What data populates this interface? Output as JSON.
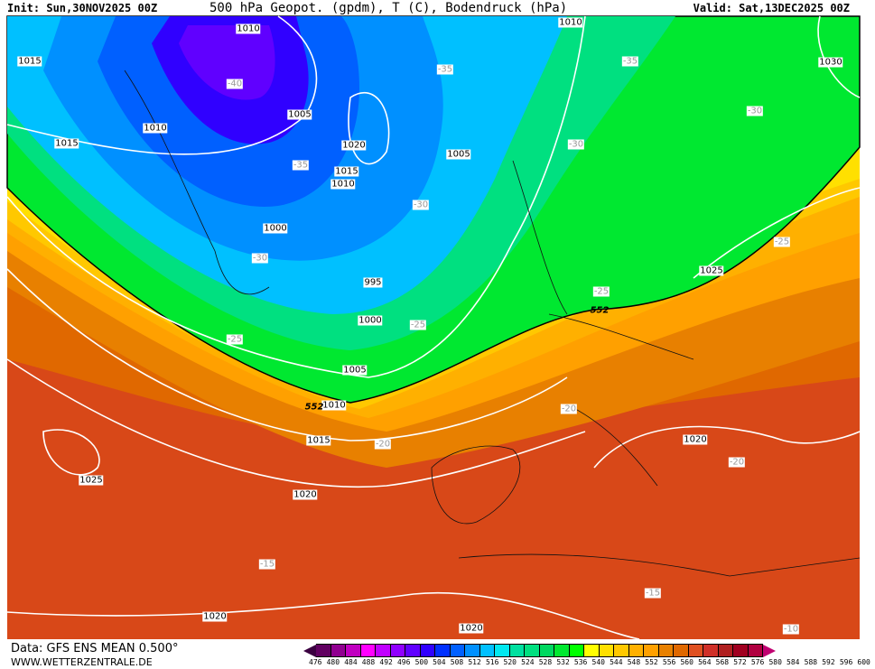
{
  "header": {
    "init": "Init: Sun,30NOV2025 00Z",
    "title": "500 hPa Geopot. (gpdm), T (C), Bodendruck (hPa)",
    "valid": "Valid: Sat,13DEC2025 00Z"
  },
  "footer": {
    "data": "Data: GFS ENS MEAN 0.500°",
    "url": "WWW.WETTERZENTRALE.DE"
  },
  "pressure_labels": [
    "1010",
    "1010",
    "1015",
    "1030",
    "1010",
    "1015",
    "1005",
    "1020",
    "1015",
    "1010",
    "1005",
    "1000",
    "995",
    "1025",
    "1000",
    "1005",
    "1010",
    "1015",
    "1020",
    "1025",
    "1020",
    "1020",
    "1020"
  ],
  "temperature_labels": [
    "-40",
    "-35",
    "-35",
    "-30",
    "-35",
    "-30",
    "-30",
    "-30",
    "-25",
    "-25",
    "-25",
    "-25",
    "-20",
    "-20",
    "-20",
    "-15",
    "-15",
    "-10"
  ],
  "geopotential_labels": [
    "552",
    "552"
  ],
  "legend": {
    "ticks": [
      "476",
      "480",
      "484",
      "488",
      "492",
      "496",
      "500",
      "504",
      "508",
      "512",
      "516",
      "520",
      "524",
      "528",
      "532",
      "536",
      "540",
      "544",
      "548",
      "552",
      "556",
      "560",
      "564",
      "568",
      "572",
      "576",
      "580",
      "584",
      "588",
      "592",
      "596",
      "600"
    ],
    "colors": [
      "#3a0040",
      "#600060",
      "#900090",
      "#c000c0",
      "#ff00ff",
      "#c000ff",
      "#9000ff",
      "#6000ff",
      "#3000ff",
      "#0030ff",
      "#0060ff",
      "#0090ff",
      "#00c0ff",
      "#00e8f0",
      "#00e0a0",
      "#00e080",
      "#00d860",
      "#00e830",
      "#00ff00",
      "#ffff00",
      "#ffe000",
      "#ffc800",
      "#ffb000",
      "#ffa000",
      "#e88000",
      "#e06800",
      "#e05020",
      "#d03028",
      "#b02020",
      "#a00020",
      "#b00040",
      "#c00070"
    ]
  },
  "colors": {
    "land_border": "#000000",
    "isobar": "#ffffff",
    "isotherm": "#a0a0a0"
  }
}
